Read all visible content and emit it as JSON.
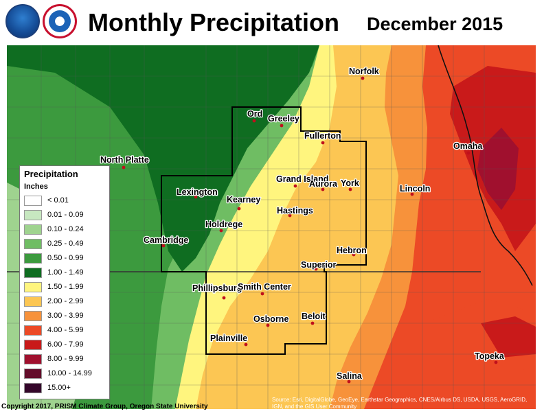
{
  "header": {
    "title": "Monthly Precipitation",
    "period": "December 2015",
    "logos": [
      "noaa-logo",
      "national-weather-service-logo"
    ]
  },
  "legend": {
    "title": "Precipitation",
    "units": "Inches",
    "classes": [
      {
        "label": "< 0.01",
        "color": "#ffffff"
      },
      {
        "label": "0.01 - 0.09",
        "color": "#c7e8c0"
      },
      {
        "label": "0.10 - 0.24",
        "color": "#9fd38f"
      },
      {
        "label": "0.25 - 0.49",
        "color": "#6fbd63"
      },
      {
        "label": "0.50 - 0.99",
        "color": "#3c9a3e"
      },
      {
        "label": "1.00 - 1.49",
        "color": "#0f6d21"
      },
      {
        "label": "1.50 - 1.99",
        "color": "#fff57e"
      },
      {
        "label": "2.00 - 2.99",
        "color": "#fcc653"
      },
      {
        "label": "3.00 - 3.99",
        "color": "#f7923b"
      },
      {
        "label": "4.00 - 5.99",
        "color": "#ec4a26"
      },
      {
        "label": "6.00 - 7.99",
        "color": "#c91a1a"
      },
      {
        "label": "8.00 - 9.99",
        "color": "#a0102e"
      },
      {
        "label": "10.00 - 14.99",
        "color": "#630c2a"
      },
      {
        "label": "15.00+",
        "color": "#34062a"
      }
    ]
  },
  "cities": [
    {
      "name": "Norfolk"
    },
    {
      "name": "Ord"
    },
    {
      "name": "Greeley"
    },
    {
      "name": "Fullerton"
    },
    {
      "name": "North Platte"
    },
    {
      "name": "Omaha"
    },
    {
      "name": "Grand Island"
    },
    {
      "name": "Aurora"
    },
    {
      "name": "York"
    },
    {
      "name": "Lincoln"
    },
    {
      "name": "Lexington"
    },
    {
      "name": "Kearney"
    },
    {
      "name": "Hastings"
    },
    {
      "name": "Holdrege"
    },
    {
      "name": "Cambridge"
    },
    {
      "name": "Hebron"
    },
    {
      "name": "Superior"
    },
    {
      "name": "Phillipsburg"
    },
    {
      "name": "Smith Center"
    },
    {
      "name": "Osborne"
    },
    {
      "name": "Beloit"
    },
    {
      "name": "Plainville"
    },
    {
      "name": "Topeka"
    },
    {
      "name": "Salina"
    }
  ],
  "footer": {
    "copyright": "Copyright 2017, PRISM Climate Group, Oregon State University",
    "source": "Source: Esri, DigitalGlobe, GeoEye, Earthstar Geographics, CNES/Airbus DS, USDA, USGS, AeroGRID, IGN, and the GIS User Community"
  }
}
